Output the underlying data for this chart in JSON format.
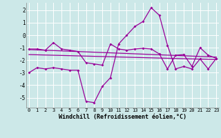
{
  "background_color": "#cce8e8",
  "grid_color": "#ffffff",
  "line_color": "#990099",
  "x_ticks": [
    0,
    1,
    2,
    3,
    4,
    5,
    6,
    7,
    8,
    9,
    10,
    11,
    12,
    13,
    14,
    15,
    16,
    17,
    18,
    19,
    20,
    21,
    22,
    23
  ],
  "y_ticks": [
    -5,
    -4,
    -3,
    -2,
    -1,
    0,
    1,
    2
  ],
  "xlim": [
    -0.3,
    23.3
  ],
  "ylim": [
    -5.8,
    2.6
  ],
  "xlabel": "Windchill (Refroidissement éolien,°C)",
  "series1_x": [
    0,
    1,
    2,
    3,
    4,
    5,
    6,
    7,
    8,
    9,
    10,
    11,
    12,
    13,
    14,
    15,
    16,
    17,
    18,
    19,
    20,
    21,
    22,
    23
  ],
  "series1_y": [
    -3.0,
    -2.6,
    -2.7,
    -2.6,
    -2.7,
    -2.8,
    -2.8,
    -5.3,
    -5.4,
    -4.1,
    -3.4,
    -0.7,
    0.0,
    0.7,
    1.1,
    2.2,
    1.6,
    -0.8,
    -2.7,
    -2.5,
    -2.7,
    -1.9,
    -2.7,
    -1.85
  ],
  "series2_x": [
    0,
    1,
    2,
    3,
    4,
    5,
    6,
    7,
    8,
    9,
    10,
    11,
    12,
    13,
    14,
    15,
    16,
    17,
    18,
    19,
    20,
    21,
    22,
    23
  ],
  "series2_y": [
    -1.1,
    -1.1,
    -1.2,
    -0.6,
    -1.1,
    -1.2,
    -1.3,
    -2.2,
    -2.3,
    -2.4,
    -0.7,
    -1.1,
    -1.2,
    -1.1,
    -1.05,
    -1.1,
    -1.5,
    -2.7,
    -1.6,
    -1.55,
    -2.5,
    -1.0,
    -1.6,
    -1.85
  ],
  "trend1_x": [
    0,
    23
  ],
  "trend1_y": [
    -1.15,
    -1.75
  ],
  "trend2_x": [
    0,
    23
  ],
  "trend2_y": [
    -1.55,
    -1.95
  ],
  "marker": "D",
  "markersize": 2,
  "linewidth": 0.9,
  "xlabel_fontsize": 6,
  "tick_fontsize": 5
}
